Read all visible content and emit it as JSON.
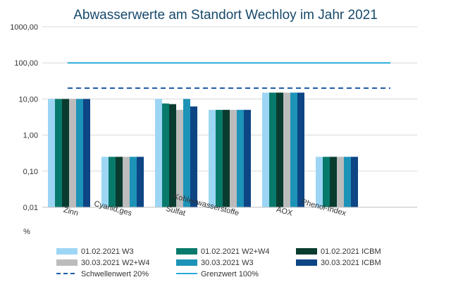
{
  "chart_data": {
    "type": "bar",
    "title": "Abwasserwerte am Standort Wechloy im Jahr 2021",
    "ylabel": "%",
    "yscale": "log",
    "ylim": [
      0.01,
      1000
    ],
    "yticks": [
      {
        "value": 0.01,
        "label": "0,01"
      },
      {
        "value": 0.1,
        "label": "0,10"
      },
      {
        "value": 1,
        "label": "1,00"
      },
      {
        "value": 10,
        "label": "10,00"
      },
      {
        "value": 100,
        "label": "100,00"
      },
      {
        "value": 1000,
        "label": "1000,00"
      }
    ],
    "grid": true,
    "legend_position": "bottom",
    "categories": [
      "Zinn",
      "Cyanid,ges",
      "Sulfat",
      "Kohlenwasserstoffe",
      "AOX",
      "Phenol-Index"
    ],
    "series": [
      {
        "name": "01.02.2021 W3",
        "color": "#9dd6f5",
        "values": [
          10,
          0.25,
          10,
          5,
          15,
          0.25
        ]
      },
      {
        "name": "01.02.2021 W2+W4",
        "color": "#087a6c",
        "values": [
          10,
          0.25,
          7.5,
          5,
          15,
          0.25
        ]
      },
      {
        "name": "01.02.2021 ICBM",
        "color": "#0a3b2f",
        "values": [
          10,
          0.25,
          7.2,
          5,
          15,
          0.25
        ]
      },
      {
        "name": "30.03.2021 W2+W4",
        "color": "#bcbcbc",
        "values": [
          10,
          0.25,
          5,
          5,
          15,
          0.25
        ]
      },
      {
        "name": "30.03.2021 W3",
        "color": "#1d93b8",
        "values": [
          10,
          0.25,
          10,
          5,
          15,
          0.25
        ]
      },
      {
        "name": "30.03.2021 ICBM",
        "color": "#0d4585",
        "values": [
          10,
          0.25,
          6.2,
          5,
          15,
          0.25
        ]
      }
    ],
    "reference_lines": [
      {
        "name": "Schwellenwert 20%",
        "value": 20,
        "style": "dashed",
        "color": "#1f5ea8"
      },
      {
        "name": "Grenzwert 100%",
        "value": 100,
        "style": "solid",
        "color": "#29a9d8"
      }
    ]
  }
}
